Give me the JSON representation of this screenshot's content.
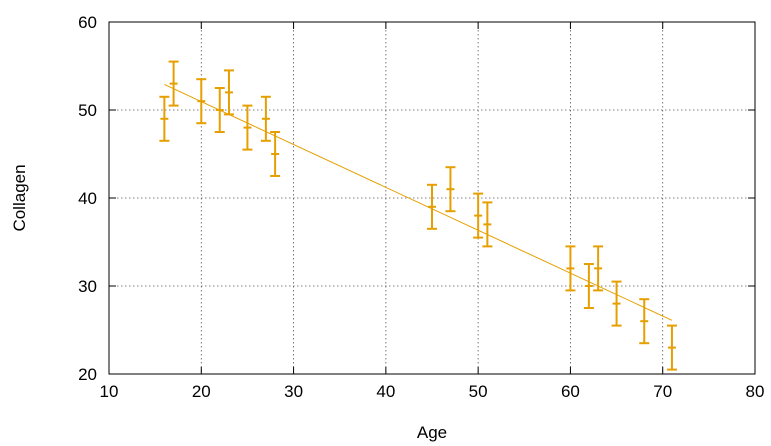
{
  "chart_data": {
    "type": "scatter",
    "title": "",
    "xlabel": "Age",
    "ylabel": "Collagen",
    "xlim": [
      10,
      80
    ],
    "ylim": [
      20,
      60
    ],
    "xticks": [
      10,
      20,
      30,
      40,
      50,
      60,
      70,
      80
    ],
    "yticks": [
      20,
      30,
      40,
      50,
      60
    ],
    "grid": true,
    "legend": "none",
    "colors": {
      "series": "#e69f00",
      "fit": "#e69f00",
      "grid": "#555555",
      "axis": "#000000"
    },
    "series": [
      {
        "x": [
          16,
          17,
          20,
          22,
          23,
          25,
          27,
          28,
          45,
          47,
          50,
          51,
          60,
          62,
          63,
          65,
          68,
          71
        ],
        "y": [
          49,
          53,
          51,
          50,
          52,
          48,
          49,
          45,
          39,
          41,
          38,
          37,
          32,
          30,
          32,
          28,
          26,
          23
        ],
        "y_error": [
          2.5,
          2.5,
          2.5,
          2.5,
          2.5,
          2.5,
          2.5,
          2.5,
          2.5,
          2.5,
          2.5,
          2.5,
          2.5,
          2.5,
          2.5,
          2.5,
          2.5,
          2.5
        ]
      }
    ],
    "fit_line": {
      "x": [
        16,
        71
      ],
      "y": [
        52.9,
        26.1
      ]
    }
  }
}
